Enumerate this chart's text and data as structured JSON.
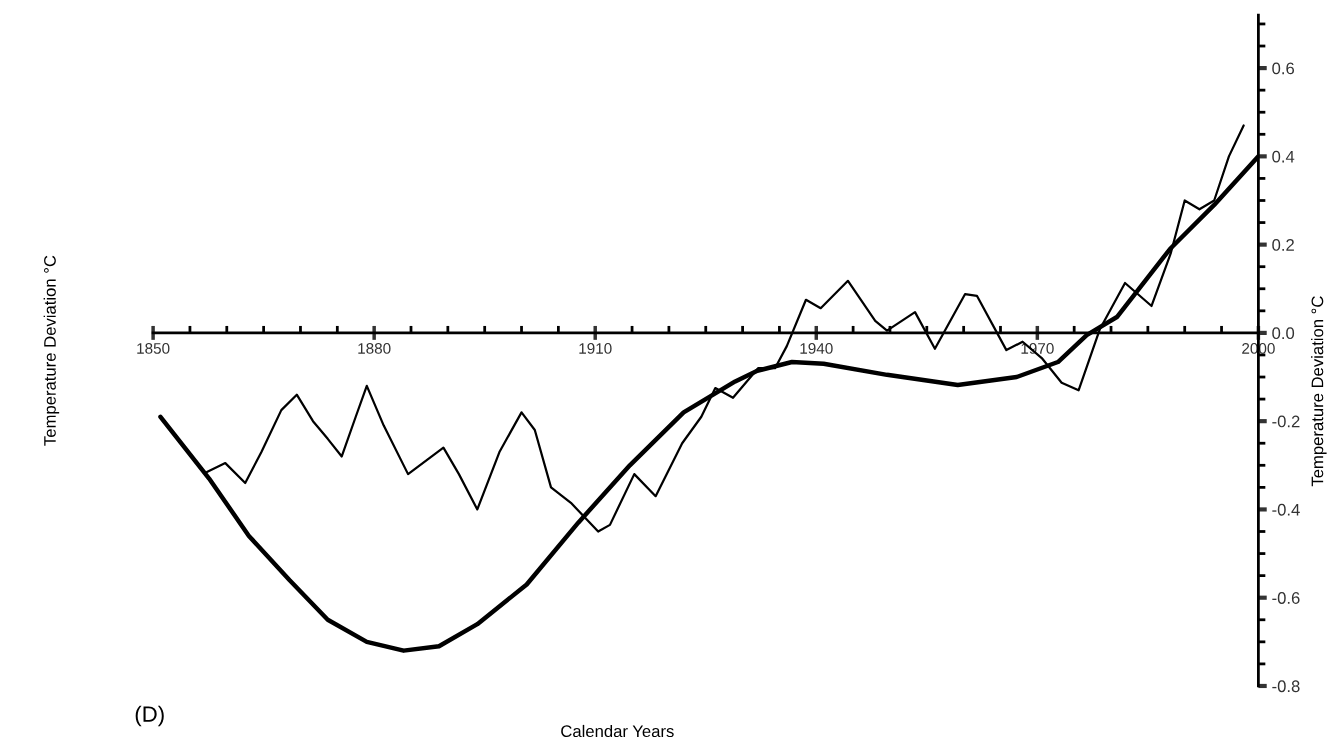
{
  "chart_data": {
    "type": "line",
    "xlabel": "Calendar Years",
    "ylabel": "Temperature Deviation °C",
    "y2label": "Temperature Deviation °C",
    "annotations": [
      "(D)"
    ],
    "xlim": [
      1850,
      2000
    ],
    "xticks": [
      1850,
      1880,
      1910,
      1940,
      1970,
      2000
    ],
    "ylim": [
      -0.8,
      0.72
    ],
    "yticks": [
      {
        "value": -0.8,
        "label": "-0.8"
      },
      {
        "value": -0.6,
        "label": "-0.6"
      },
      {
        "value": -0.4,
        "label": "-0.4"
      },
      {
        "value": -0.2,
        "label": "-0.2"
      },
      {
        "value": 0,
        "label": "0.0"
      },
      {
        "value": 0.2,
        "label": "0.2"
      },
      {
        "value": 0.4,
        "label": "0.4"
      },
      {
        "value": 0.6,
        "label": "0.6"
      }
    ],
    "grid": false,
    "line_style": "solid",
    "marker": "none",
    "series": [
      {
        "color": "#000000",
        "x": [
          1851,
          1857.6,
          1863,
          1868.5,
          1873.7,
          1879,
          1884,
          1888.8,
          1894,
          1900.7,
          1907.7,
          1914.7,
          1922,
          1929,
          1932,
          1936.7,
          1941,
          1949.6,
          1959.2,
          1967.2,
          1972.8,
          1976.7,
          1980.8,
          1988,
          1994,
          2000
        ],
        "values": [
          -0.19,
          -0.33,
          -0.46,
          -0.56,
          -0.65,
          -0.7,
          -0.72,
          -0.71,
          -0.66,
          -0.57,
          -0.43,
          -0.3,
          -0.18,
          -0.11,
          -0.086,
          -0.066,
          -0.07,
          -0.095,
          -0.118,
          -0.1,
          -0.066,
          -0.005,
          0.036,
          0.19,
          0.29,
          0.4
        ]
      },
      {
        "color": "#000000",
        "x": [
          1857.3,
          1859.8,
          1862.5,
          1864.7,
          1867.4,
          1869.5,
          1871.7,
          1873.7,
          1875.6,
          1877.5,
          1879,
          1881.3,
          1884.6,
          1889.4,
          1891.5,
          1894,
          1897,
          1900,
          1901.8,
          1904,
          1906.7,
          1910.4,
          1912,
          1915.3,
          1918.2,
          1921.8,
          1924.4,
          1926.3,
          1928.7,
          1932.1,
          1934.4,
          1936,
          1938.6,
          1940.6,
          1944.3,
          1948,
          1949.6,
          1953.4,
          1956.1,
          1960.2,
          1961.8,
          1965.8,
          1968,
          1970.6,
          1973.3,
          1975.6,
          1978.5,
          1981.9,
          1985.5,
          1988.1,
          1990,
          1992,
          1994,
          1996,
          1998
        ],
        "values": [
          -0.315,
          -0.295,
          -0.34,
          -0.27,
          -0.175,
          -0.14,
          -0.2,
          -0.24,
          -0.28,
          -0.19,
          -0.12,
          -0.21,
          -0.32,
          -0.26,
          -0.32,
          -0.4,
          -0.27,
          -0.18,
          -0.22,
          -0.35,
          -0.385,
          -0.45,
          -0.435,
          -0.32,
          -0.37,
          -0.25,
          -0.19,
          -0.125,
          -0.147,
          -0.08,
          -0.08,
          -0.03,
          0.075,
          0.056,
          0.118,
          0.027,
          0.005,
          0.047,
          -0.036,
          0.088,
          0.084,
          -0.039,
          -0.02,
          -0.057,
          -0.113,
          -0.13,
          0.009,
          0.113,
          0.061,
          0.18,
          0.3,
          0.28,
          0.3,
          0.4,
          0.47
        ]
      }
    ]
  }
}
